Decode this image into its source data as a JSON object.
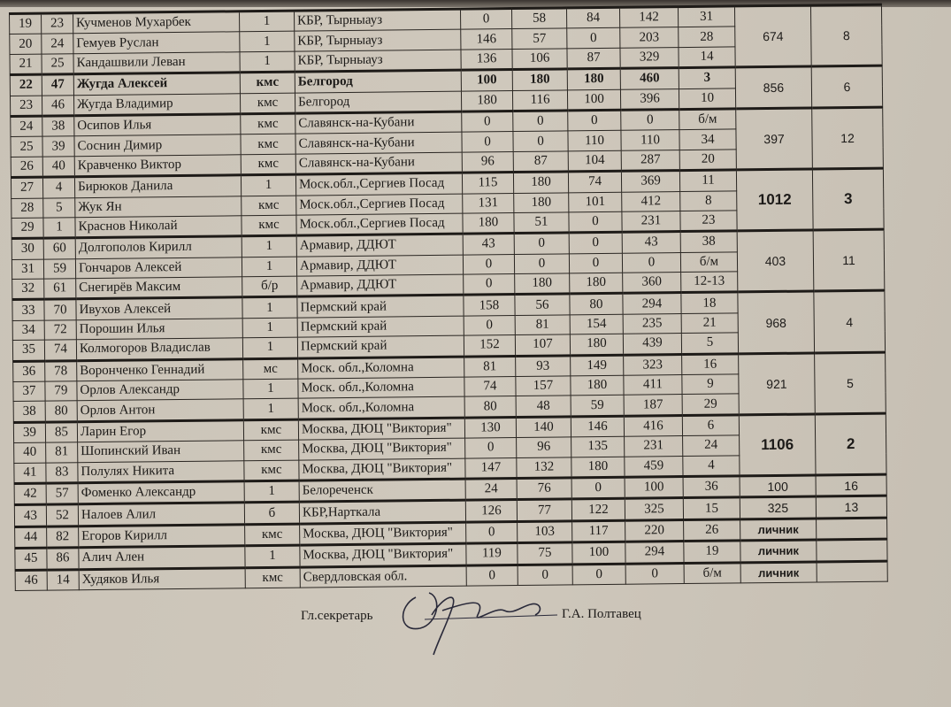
{
  "rows": [
    {
      "n": "19",
      "bib": "23",
      "name": "Кучменов Мухарбек",
      "rank": "1",
      "region": "КБР, Тырныауз",
      "s1": "0",
      "s2": "58",
      "s3": "84",
      "total": "142",
      "place": "31"
    },
    {
      "n": "20",
      "bib": "24",
      "name": "Гемуев Руслан",
      "rank": "1",
      "region": "КБР, Тырныауз",
      "s1": "146",
      "s2": "57",
      "s3": "0",
      "total": "203",
      "place": "28"
    },
    {
      "n": "21",
      "bib": "25",
      "name": "Кандашвили Леван",
      "rank": "1",
      "region": "КБР, Тырныауз",
      "s1": "136",
      "s2": "106",
      "s3": "87",
      "total": "329",
      "place": "14"
    },
    {
      "n": "22",
      "bib": "47",
      "name": "Жугда Алексей",
      "rank": "кмс",
      "region": "Белгород",
      "s1": "100",
      "s2": "180",
      "s3": "180",
      "total": "460",
      "place": "3",
      "bold": true
    },
    {
      "n": "23",
      "bib": "46",
      "name": "Жугда Владимир",
      "rank": "кмс",
      "region": "Белгород",
      "s1": "180",
      "s2": "116",
      "s3": "100",
      "total": "396",
      "place": "10"
    },
    {
      "n": "24",
      "bib": "38",
      "name": "Осипов Илья",
      "rank": "кмс",
      "region": "Славянск-на-Кубани",
      "s1": "0",
      "s2": "0",
      "s3": "0",
      "total": "0",
      "place": "б/м"
    },
    {
      "n": "25",
      "bib": "39",
      "name": "Соснин Димир",
      "rank": "кмс",
      "region": "Славянск-на-Кубани",
      "s1": "0",
      "s2": "0",
      "s3": "110",
      "total": "110",
      "place": "34"
    },
    {
      "n": "26",
      "bib": "40",
      "name": "Кравченко Виктор",
      "rank": "кмс",
      "region": "Славянск-на-Кубани",
      "s1": "96",
      "s2": "87",
      "s3": "104",
      "total": "287",
      "place": "20"
    },
    {
      "n": "27",
      "bib": "4",
      "name": "Бирюков Данила",
      "rank": "1",
      "region": "Моск.обл.,Сергиев Посад",
      "s1": "115",
      "s2": "180",
      "s3": "74",
      "total": "369",
      "place": "11"
    },
    {
      "n": "28",
      "bib": "5",
      "name": "Жук Ян",
      "rank": "кмс",
      "region": "Моск.обл.,Сергиев Посад",
      "s1": "131",
      "s2": "180",
      "s3": "101",
      "total": "412",
      "place": "8"
    },
    {
      "n": "29",
      "bib": "1",
      "name": "Краснов Николай",
      "rank": "кмс",
      "region": "Моск.обл.,Сергиев Посад",
      "s1": "180",
      "s2": "51",
      "s3": "0",
      "total": "231",
      "place": "23"
    },
    {
      "n": "30",
      "bib": "60",
      "name": "Долгополов Кирилл",
      "rank": "1",
      "region": "Армавир, ДДЮТ",
      "s1": "43",
      "s2": "0",
      "s3": "0",
      "total": "43",
      "place": "38"
    },
    {
      "n": "31",
      "bib": "59",
      "name": "Гончаров Алексей",
      "rank": "1",
      "region": "Армавир, ДДЮТ",
      "s1": "0",
      "s2": "0",
      "s3": "0",
      "total": "0",
      "place": "б/м"
    },
    {
      "n": "32",
      "bib": "61",
      "name": "Снегирёв Максим",
      "rank": "б/р",
      "region": "Армавир, ДДЮТ",
      "s1": "0",
      "s2": "180",
      "s3": "180",
      "total": "360",
      "place": "12-13"
    },
    {
      "n": "33",
      "bib": "70",
      "name": "Ивухов Алексей",
      "rank": "1",
      "region": "Пермский край",
      "s1": "158",
      "s2": "56",
      "s3": "80",
      "total": "294",
      "place": "18"
    },
    {
      "n": "34",
      "bib": "72",
      "name": "Порошин Илья",
      "rank": "1",
      "region": "Пермский край",
      "s1": "0",
      "s2": "81",
      "s3": "154",
      "total": "235",
      "place": "21"
    },
    {
      "n": "35",
      "bib": "74",
      "name": "Колмогоров Владислав",
      "rank": "1",
      "region": "Пермский край",
      "s1": "152",
      "s2": "107",
      "s3": "180",
      "total": "439",
      "place": "5"
    },
    {
      "n": "36",
      "bib": "78",
      "name": "Воронченко Геннадий",
      "rank": "мс",
      "region": "Моск. обл.,Коломна",
      "s1": "81",
      "s2": "93",
      "s3": "149",
      "total": "323",
      "place": "16"
    },
    {
      "n": "37",
      "bib": "79",
      "name": "Орлов Александр",
      "rank": "1",
      "region": "Моск. обл.,Коломна",
      "s1": "74",
      "s2": "157",
      "s3": "180",
      "total": "411",
      "place": "9"
    },
    {
      "n": "38",
      "bib": "80",
      "name": "Орлов Антон",
      "rank": "1",
      "region": "Моск. обл.,Коломна",
      "s1": "80",
      "s2": "48",
      "s3": "59",
      "total": "187",
      "place": "29"
    },
    {
      "n": "39",
      "bib": "85",
      "name": "Ларин Егор",
      "rank": "кмс",
      "region": "Москва, ДЮЦ \"Виктория\"",
      "s1": "130",
      "s2": "140",
      "s3": "146",
      "total": "416",
      "place": "6"
    },
    {
      "n": "40",
      "bib": "81",
      "name": "Шопинский Иван",
      "rank": "кмс",
      "region": "Москва, ДЮЦ \"Виктория\"",
      "s1": "0",
      "s2": "96",
      "s3": "135",
      "total": "231",
      "place": "24"
    },
    {
      "n": "41",
      "bib": "83",
      "name": "Полулях Никита",
      "rank": "кмс",
      "region": "Москва, ДЮЦ \"Виктория\"",
      "s1": "147",
      "s2": "132",
      "s3": "180",
      "total": "459",
      "place": "4"
    },
    {
      "n": "42",
      "bib": "57",
      "name": "Фоменко Александр",
      "rank": "1",
      "region": "Белореченск",
      "s1": "24",
      "s2": "76",
      "s3": "0",
      "total": "100",
      "place": "36"
    },
    {
      "n": "43",
      "bib": "52",
      "name": "Налоев Алил",
      "rank": "б",
      "region": "КБР,Нарткала",
      "s1": "126",
      "s2": "77",
      "s3": "122",
      "total": "325",
      "place": "15"
    },
    {
      "n": "44",
      "bib": "82",
      "name": "Егоров Кирилл",
      "rank": "кмс",
      "region": "Москва, ДЮЦ \"Виктория\"",
      "s1": "0",
      "s2": "103",
      "s3": "117",
      "total": "220",
      "place": "26"
    },
    {
      "n": "45",
      "bib": "86",
      "name": "Алич Ален",
      "rank": "1",
      "region": "Москва, ДЮЦ \"Виктория\"",
      "s1": "119",
      "s2": "75",
      "s3": "100",
      "total": "294",
      "place": "19"
    },
    {
      "n": "46",
      "bib": "14",
      "name": "Худяков Илья",
      "rank": "кмс",
      "region": "Свердловская обл.",
      "s1": "0",
      "s2": "0",
      "s3": "0",
      "total": "0",
      "place": "б/м"
    }
  ],
  "teams": [
    {
      "start": 0,
      "span": 3,
      "total": "674",
      "place": "8"
    },
    {
      "start": 3,
      "span": 2,
      "total": "856",
      "place": "6"
    },
    {
      "start": 5,
      "span": 3,
      "total": "397",
      "place": "12"
    },
    {
      "start": 8,
      "span": 3,
      "total": "1012",
      "place": "3",
      "bold": true
    },
    {
      "start": 11,
      "span": 3,
      "total": "403",
      "place": "11"
    },
    {
      "start": 14,
      "span": 3,
      "total": "968",
      "place": "4"
    },
    {
      "start": 17,
      "span": 3,
      "total": "921",
      "place": "5"
    },
    {
      "start": 20,
      "span": 3,
      "total": "1106",
      "place": "2",
      "bold": true
    },
    {
      "start": 23,
      "span": 1,
      "total": "100",
      "place": "16"
    },
    {
      "start": 24,
      "span": 1,
      "total": "325",
      "place": "13"
    },
    {
      "start": 25,
      "span": 1,
      "total": "личник",
      "place": "",
      "lichnik": true
    },
    {
      "start": 26,
      "span": 1,
      "total": "личник",
      "place": "",
      "lichnik": true
    },
    {
      "start": 27,
      "span": 1,
      "total": "личник",
      "place": "",
      "lichnik": true
    }
  ],
  "footer": {
    "role": "Гл.секретарь",
    "name": "Г.А. Полтавец"
  }
}
